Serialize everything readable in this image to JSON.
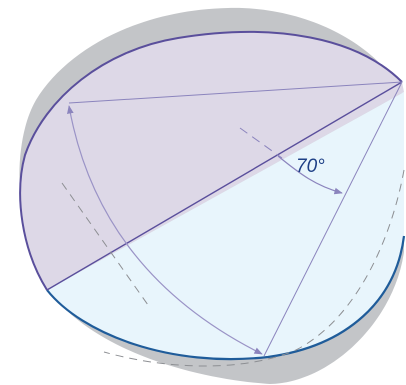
{
  "angle_label": "70°",
  "colors": {
    "shadow_side": "#a9abae",
    "shadow_bottom": "#9fa1a4",
    "shadow_fill": "#c3c5c8",
    "upper_face": "#ddd8e7",
    "lower_face": "#e8f5fc",
    "upper_edge": "#5a4f9c",
    "lower_edge": "#1f5c9a",
    "construction_line": "#8b84bd",
    "arc_line": "#9a93c6",
    "dashed_line": "#8d8f93",
    "angle_text": "#1d3f86"
  }
}
